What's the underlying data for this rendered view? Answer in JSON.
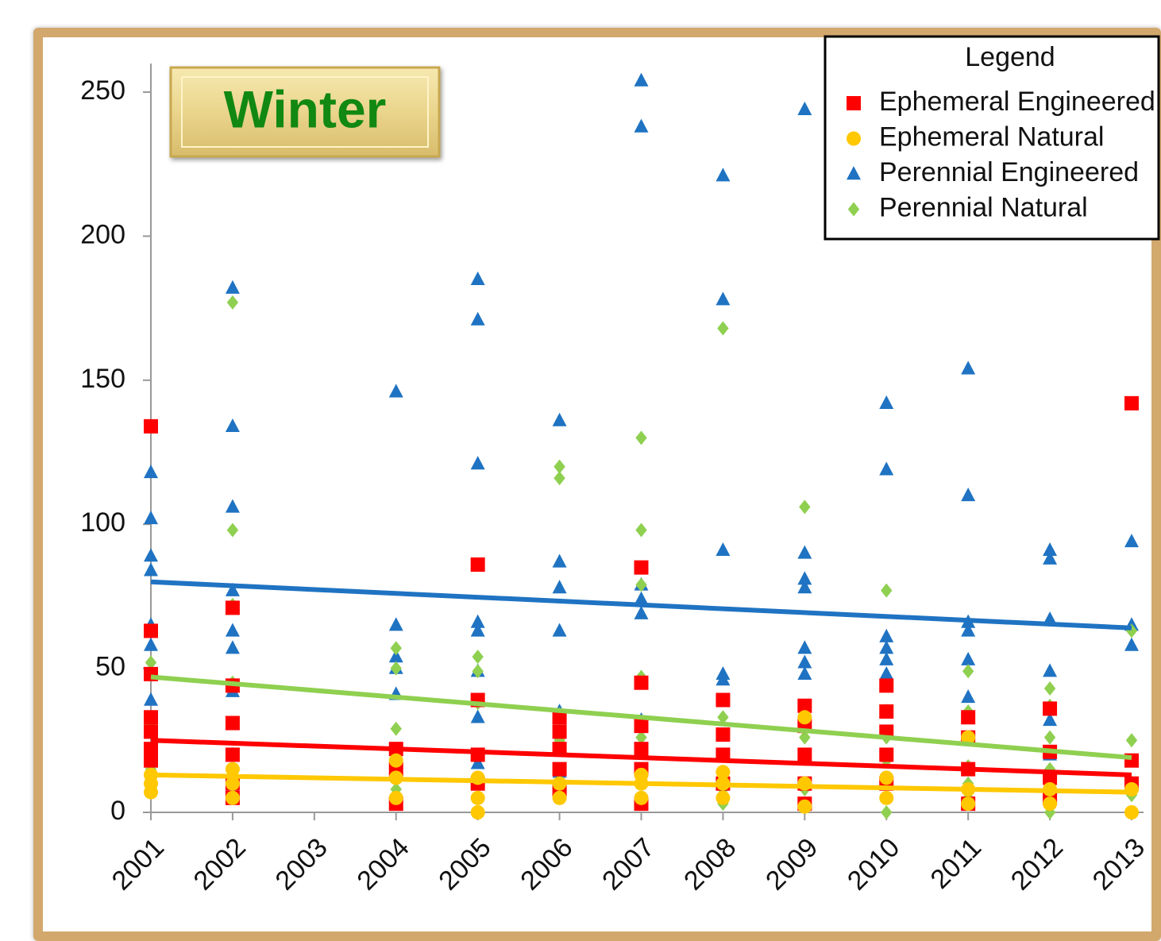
{
  "chart_data": {
    "type": "scatter",
    "title": "Winter",
    "legend_title": "Legend",
    "xlim": [
      2001,
      2013
    ],
    "xticks": [
      2001,
      2002,
      2003,
      2004,
      2005,
      2006,
      2007,
      2008,
      2009,
      2010,
      2011,
      2012,
      2013
    ],
    "ylim": [
      0,
      250
    ],
    "yticks": [
      0,
      50,
      100,
      150,
      200,
      250
    ],
    "legend": "upper right",
    "series": [
      {
        "name": "Ephemeral Engineered",
        "color": "#ff0000",
        "marker": "square",
        "trend": [
          25,
          13
        ],
        "x": [
          2001,
          2001,
          2001,
          2001,
          2001,
          2001,
          2001,
          2002,
          2002,
          2002,
          2002,
          2002,
          2002,
          2004,
          2004,
          2004,
          2005,
          2005,
          2005,
          2005,
          2006,
          2006,
          2006,
          2006,
          2006,
          2007,
          2007,
          2007,
          2007,
          2007,
          2007,
          2008,
          2008,
          2008,
          2008,
          2009,
          2009,
          2009,
          2009,
          2009,
          2010,
          2010,
          2010,
          2010,
          2010,
          2011,
          2011,
          2011,
          2011,
          2012,
          2012,
          2012,
          2012,
          2013,
          2013,
          2013
        ],
        "values": [
          134,
          63,
          48,
          33,
          28,
          22,
          18,
          71,
          44,
          31,
          20,
          10,
          5,
          22,
          15,
          3,
          86,
          39,
          20,
          10,
          33,
          28,
          22,
          15,
          8,
          85,
          45,
          30,
          22,
          15,
          3,
          39,
          27,
          20,
          10,
          37,
          30,
          20,
          10,
          3,
          44,
          35,
          28,
          20,
          10,
          33,
          26,
          15,
          3,
          36,
          21,
          12,
          5,
          142,
          18,
          10
        ]
      },
      {
        "name": "Ephemeral Natural",
        "color": "#ffc800",
        "marker": "circle",
        "trend": [
          13,
          7
        ],
        "x": [
          2001,
          2001,
          2001,
          2002,
          2002,
          2002,
          2004,
          2004,
          2004,
          2005,
          2005,
          2005,
          2006,
          2006,
          2007,
          2007,
          2007,
          2008,
          2008,
          2008,
          2009,
          2009,
          2009,
          2010,
          2010,
          2011,
          2011,
          2011,
          2012,
          2012,
          2013,
          2013
        ],
        "values": [
          13,
          10,
          7,
          15,
          10,
          5,
          18,
          12,
          5,
          12,
          5,
          0,
          10,
          5,
          13,
          10,
          5,
          14,
          10,
          5,
          33,
          10,
          2,
          12,
          5,
          26,
          8,
          3,
          8,
          3,
          8,
          0
        ]
      },
      {
        "name": "Perennial Engineered",
        "color": "#1f73c2",
        "marker": "triangle",
        "trend": [
          80,
          64
        ],
        "x": [
          2001,
          2001,
          2001,
          2001,
          2001,
          2001,
          2001,
          2002,
          2002,
          2002,
          2002,
          2002,
          2002,
          2002,
          2002,
          2004,
          2004,
          2004,
          2004,
          2004,
          2005,
          2005,
          2005,
          2005,
          2005,
          2005,
          2005,
          2005,
          2006,
          2006,
          2006,
          2006,
          2006,
          2006,
          2006,
          2007,
          2007,
          2007,
          2007,
          2007,
          2007,
          2008,
          2008,
          2008,
          2008,
          2008,
          2009,
          2009,
          2009,
          2009,
          2009,
          2009,
          2009,
          2010,
          2010,
          2010,
          2010,
          2010,
          2010,
          2010,
          2011,
          2011,
          2011,
          2011,
          2011,
          2011,
          2012,
          2012,
          2012,
          2012,
          2012,
          2012,
          2013,
          2013,
          2013,
          2013
        ],
        "values": [
          118,
          102,
          89,
          84,
          65,
          58,
          39,
          182,
          134,
          106,
          77,
          63,
          57,
          42,
          20,
          146,
          65,
          54,
          50,
          41,
          185,
          171,
          121,
          66,
          63,
          49,
          33,
          17,
          136,
          87,
          78,
          63,
          35,
          28,
          14,
          254,
          238,
          79,
          74,
          69,
          32,
          221,
          178,
          91,
          48,
          46,
          244,
          90,
          81,
          78,
          57,
          52,
          48,
          142,
          119,
          61,
          57,
          53,
          48,
          35,
          154,
          110,
          66,
          63,
          53,
          40,
          91,
          88,
          67,
          49,
          32,
          20,
          94,
          65,
          58,
          10
        ]
      },
      {
        "name": "Perennial Natural",
        "color": "#8fd050",
        "marker": "diamond",
        "trend": [
          47,
          19
        ],
        "x": [
          2001,
          2001,
          2001,
          2001,
          2001,
          2002,
          2002,
          2002,
          2002,
          2002,
          2002,
          2002,
          2004,
          2004,
          2004,
          2004,
          2004,
          2005,
          2005,
          2005,
          2005,
          2005,
          2006,
          2006,
          2006,
          2006,
          2006,
          2007,
          2007,
          2007,
          2007,
          2007,
          2007,
          2008,
          2008,
          2008,
          2008,
          2008,
          2009,
          2009,
          2009,
          2009,
          2009,
          2010,
          2010,
          2010,
          2010,
          2010,
          2011,
          2011,
          2011,
          2011,
          2011,
          2012,
          2012,
          2012,
          2012,
          2012,
          2012,
          2013,
          2013,
          2013
        ],
        "values": [
          52,
          31,
          18,
          15,
          10,
          177,
          98,
          72,
          45,
          20,
          15,
          5,
          57,
          50,
          29,
          15,
          8,
          54,
          49,
          38,
          10,
          5,
          120,
          116,
          34,
          25,
          23,
          130,
          98,
          79,
          47,
          26,
          22,
          168,
          33,
          20,
          8,
          3,
          106,
          30,
          26,
          19,
          8,
          77,
          26,
          18,
          12,
          0,
          49,
          35,
          16,
          10,
          5,
          43,
          37,
          26,
          15,
          5,
          0,
          63,
          25,
          6
        ]
      }
    ]
  }
}
